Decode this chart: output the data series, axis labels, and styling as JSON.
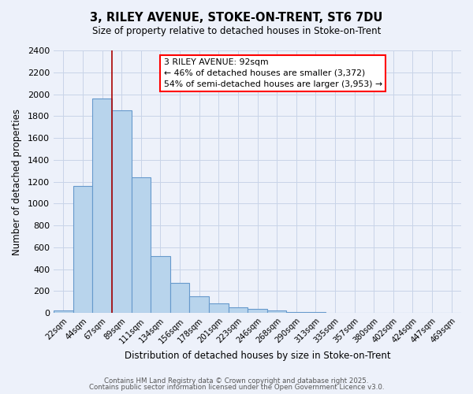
{
  "title": "3, RILEY AVENUE, STOKE-ON-TRENT, ST6 7DU",
  "subtitle": "Size of property relative to detached houses in Stoke-on-Trent",
  "xlabel": "Distribution of detached houses by size in Stoke-on-Trent",
  "ylabel": "Number of detached properties",
  "categories": [
    "22sqm",
    "44sqm",
    "67sqm",
    "89sqm",
    "111sqm",
    "134sqm",
    "156sqm",
    "178sqm",
    "201sqm",
    "223sqm",
    "246sqm",
    "268sqm",
    "290sqm",
    "313sqm",
    "335sqm",
    "357sqm",
    "380sqm",
    "402sqm",
    "424sqm",
    "447sqm",
    "469sqm"
  ],
  "values": [
    25,
    1160,
    1960,
    1850,
    1240,
    520,
    275,
    150,
    88,
    50,
    38,
    20,
    8,
    5,
    3,
    2,
    2,
    2,
    1,
    1,
    1
  ],
  "bar_color": "#b8d4ec",
  "bar_edge_color": "#6699cc",
  "background_color": "#edf1fa",
  "grid_color": "#c8d4e8",
  "annotation_line1": "3 RILEY AVENUE: 92sqm",
  "annotation_line2": "← 46% of detached houses are smaller (3,372)",
  "annotation_line3": "54% of semi-detached houses are larger (3,953) →",
  "property_bin_index": 3,
  "ylim": [
    0,
    2400
  ],
  "yticks": [
    0,
    200,
    400,
    600,
    800,
    1000,
    1200,
    1400,
    1600,
    1800,
    2000,
    2200,
    2400
  ],
  "footer_line1": "Contains HM Land Registry data © Crown copyright and database right 2025.",
  "footer_line2": "Contains public sector information licensed under the Open Government Licence v3.0."
}
